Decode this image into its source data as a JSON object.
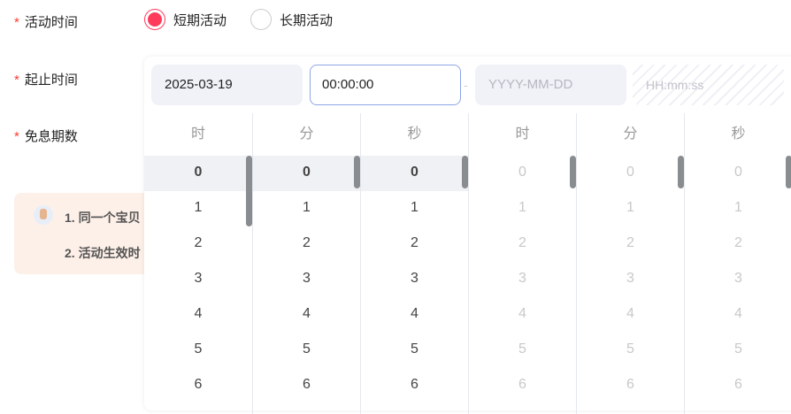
{
  "form": {
    "activity_time_label": "活动时间",
    "range_label": "起止时间",
    "installments_label": "免息期数",
    "required_mark": "*",
    "radio_options": [
      {
        "label": "短期活动",
        "checked": true
      },
      {
        "label": "长期活动",
        "checked": false
      }
    ]
  },
  "notice": {
    "lines": [
      "1. 同一个宝贝",
      "2. 活动生效时"
    ]
  },
  "picker": {
    "start_date": "2025-03-19",
    "start_time": "00:00:00",
    "separator": "-",
    "end_date_placeholder": "YYYY-MM-DD",
    "end_time_placeholder": "HH:mm:ss",
    "columns": [
      {
        "header": "时",
        "values": [
          "0",
          "1",
          "2",
          "3",
          "4",
          "5",
          "6"
        ],
        "selected": "0",
        "disabled": false
      },
      {
        "header": "分",
        "values": [
          "0",
          "1",
          "2",
          "3",
          "4",
          "5",
          "6"
        ],
        "selected": "0",
        "disabled": false
      },
      {
        "header": "秒",
        "values": [
          "0",
          "1",
          "2",
          "3",
          "4",
          "5",
          "6"
        ],
        "selected": "0",
        "disabled": false
      },
      {
        "header": "时",
        "values": [
          "0",
          "1",
          "2",
          "3",
          "4",
          "5",
          "6"
        ],
        "selected": "0",
        "disabled": true
      },
      {
        "header": "分",
        "values": [
          "0",
          "1",
          "2",
          "3",
          "4",
          "5",
          "6"
        ],
        "selected": "0",
        "disabled": true
      },
      {
        "header": "秒",
        "values": [
          "0",
          "1",
          "2",
          "3",
          "4",
          "5",
          "6"
        ],
        "selected": "0",
        "disabled": true
      }
    ]
  },
  "colors": {
    "accent": "#ff3b5c",
    "required": "#ff3b30",
    "focus_border": "#8ea6e6",
    "notice_bg": "#fdf0e8"
  }
}
